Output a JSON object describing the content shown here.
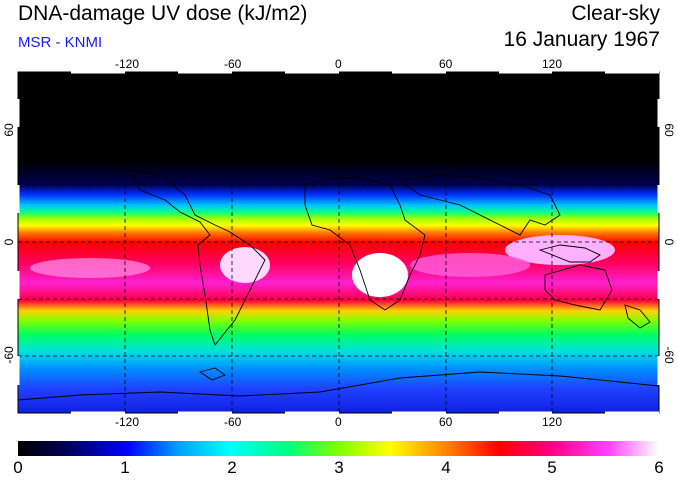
{
  "header": {
    "title": "DNA-damage UV dose (kJ/m2)",
    "credit": "MSR - KNMI",
    "condition": "Clear-sky",
    "date": "16 January 1967"
  },
  "map": {
    "lon_ticks": [
      "-120",
      "-60",
      "0",
      "60",
      "120"
    ],
    "lat_ticks": [
      "60",
      "0",
      "-60"
    ],
    "lat_ticks_right": [
      "60",
      "0",
      "-60"
    ]
  },
  "colorbar": {
    "labels": [
      "0",
      "1",
      "2",
      "3",
      "4",
      "5",
      "6"
    ],
    "stops": [
      "#000000",
      "#000060",
      "#0000ff",
      "#00a0ff",
      "#00ffff",
      "#00ff80",
      "#80ff00",
      "#ffff00",
      "#ff8000",
      "#ff0000",
      "#ff0080",
      "#ff40ff",
      "#ffffff"
    ]
  }
}
